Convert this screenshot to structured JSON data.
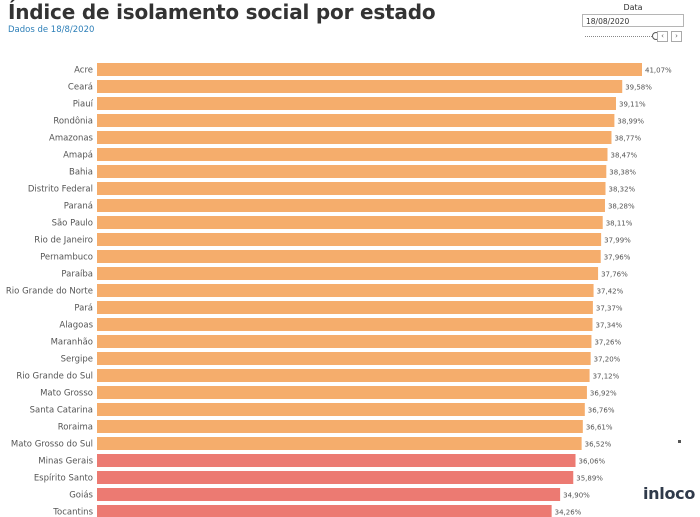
{
  "header": {
    "title": "Índice de isolamento social por estado",
    "subtitle": "Dados de 18/8/2020"
  },
  "filter": {
    "label": "Data",
    "value": "18/08/2020",
    "prev_icon": "chevron-left-icon",
    "next_icon": "chevron-right-icon"
  },
  "logo": {
    "text": "inloco"
  },
  "colors": {
    "orange_bar": "#f5ad6c",
    "red_bar": "#ec7a72",
    "label_text": "#555555",
    "value_text": "#555555"
  },
  "chart_data": {
    "type": "bar",
    "orientation": "horizontal",
    "title": "Índice de isolamento social por estado",
    "subtitle": "Dados de 18/8/2020",
    "categories": [
      "Acre",
      "Ceará",
      "Piauí",
      "Rondônia",
      "Amazonas",
      "Amapá",
      "Bahia",
      "Distrito Federal",
      "Paraná",
      "São Paulo",
      "Rio de Janeiro",
      "Pernambuco",
      "Paraíba",
      "Rio Grande do Norte",
      "Pará",
      "Alagoas",
      "Maranhão",
      "Sergipe",
      "Rio Grande do Sul",
      "Mato Grosso",
      "Santa Catarina",
      "Roraima",
      "Mato Grosso do Sul",
      "Minas Gerais",
      "Espírito Santo",
      "Goiás",
      "Tocantins"
    ],
    "values": [
      41.07,
      39.58,
      39.11,
      38.99,
      38.77,
      38.47,
      38.38,
      38.32,
      38.28,
      38.11,
      37.99,
      37.96,
      37.76,
      37.42,
      37.37,
      37.34,
      37.26,
      37.2,
      37.12,
      36.92,
      36.76,
      36.61,
      36.52,
      36.06,
      35.89,
      34.9,
      34.26
    ],
    "value_labels": [
      "41,07%",
      "39,58%",
      "39,11%",
      "38,99%",
      "38,77%",
      "38,47%",
      "38,38%",
      "38,32%",
      "38,28%",
      "38,11%",
      "37,99%",
      "37,96%",
      "37,76%",
      "37,42%",
      "37,37%",
      "37,34%",
      "37,26%",
      "37,20%",
      "37,12%",
      "36,92%",
      "36,76%",
      "36,61%",
      "36,52%",
      "36,06%",
      "35,89%",
      "34,90%",
      "34,26%"
    ],
    "color_groups": [
      "orange",
      "orange",
      "orange",
      "orange",
      "orange",
      "orange",
      "orange",
      "orange",
      "orange",
      "orange",
      "orange",
      "orange",
      "orange",
      "orange",
      "orange",
      "orange",
      "orange",
      "orange",
      "orange",
      "orange",
      "orange",
      "orange",
      "orange",
      "red",
      "red",
      "red",
      "red"
    ],
    "xlim": [
      0,
      41.07
    ],
    "grid": false,
    "legend": "none"
  }
}
